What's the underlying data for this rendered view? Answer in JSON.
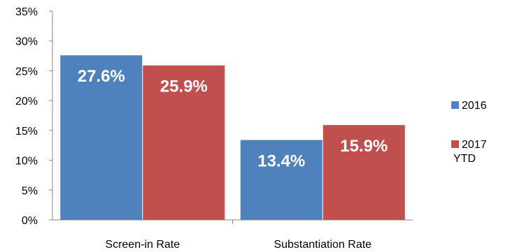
{
  "chart_data": {
    "type": "bar",
    "categories": [
      "Screen-in Rate",
      "Substantiation Rate"
    ],
    "series": [
      {
        "name": "2016",
        "values": [
          27.6,
          13.4
        ],
        "labels": [
          "27.6%",
          "13.4%"
        ],
        "color": "#4f81bd"
      },
      {
        "name": "2017 YTD",
        "values": [
          25.9,
          15.9
        ],
        "labels": [
          "25.9%",
          "15.9%"
        ],
        "color": "#c0504d"
      }
    ],
    "yticks": [
      "0%",
      "5%",
      "10%",
      "15%",
      "20%",
      "25%",
      "30%",
      "35%"
    ],
    "ylim": [
      0,
      35
    ],
    "grid": false,
    "legend": {
      "position": "right",
      "entries": [
        "2016",
        "2017 YTD"
      ]
    },
    "title": "",
    "xlabel": "",
    "ylabel": ""
  }
}
